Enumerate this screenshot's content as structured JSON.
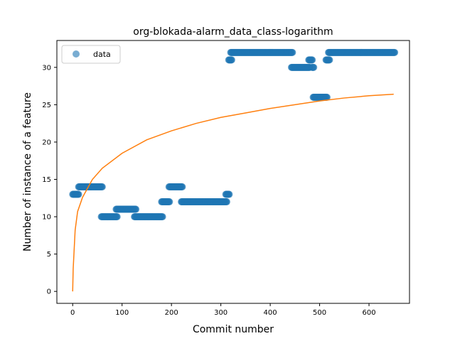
{
  "chart_data": {
    "type": "scatter",
    "title": "org-blokada-alarm_data_class-logarithm",
    "xlabel": "Commit number",
    "ylabel": "Number of instance of a feature",
    "xlim": [
      -32,
      682
    ],
    "ylim": [
      -1.6,
      33.6
    ],
    "xticks": [
      0,
      100,
      200,
      300,
      400,
      500,
      600
    ],
    "yticks": [
      0,
      5,
      10,
      15,
      20,
      25,
      30
    ],
    "grid": false,
    "legend": {
      "position": "top-left",
      "entries": [
        "data"
      ]
    },
    "series": [
      {
        "name": "data",
        "kind": "scatter",
        "color": "#1f77b4",
        "segments": [
          {
            "x_start": 0,
            "x_end": 12,
            "y": 13
          },
          {
            "x_start": 12,
            "x_end": 60,
            "y": 14
          },
          {
            "x_start": 58,
            "x_end": 90,
            "y": 10
          },
          {
            "x_start": 88,
            "x_end": 128,
            "y": 11
          },
          {
            "x_start": 125,
            "x_end": 182,
            "y": 10
          },
          {
            "x_start": 180,
            "x_end": 196,
            "y": 12
          },
          {
            "x_start": 195,
            "x_end": 222,
            "y": 14
          },
          {
            "x_start": 220,
            "x_end": 312,
            "y": 12
          },
          {
            "x_start": 310,
            "x_end": 317,
            "y": 13
          },
          {
            "x_start": 316,
            "x_end": 322,
            "y": 31
          },
          {
            "x_start": 320,
            "x_end": 445,
            "y": 32
          },
          {
            "x_start": 443,
            "x_end": 480,
            "y": 30
          },
          {
            "x_start": 478,
            "x_end": 485,
            "y": 31
          },
          {
            "x_start": 485,
            "x_end": 488,
            "y": 30
          },
          {
            "x_start": 487,
            "x_end": 515,
            "y": 26
          },
          {
            "x_start": 513,
            "x_end": 520,
            "y": 31
          },
          {
            "x_start": 518,
            "x_end": 652,
            "y": 32
          }
        ]
      },
      {
        "name": "",
        "kind": "line",
        "color": "#ff7f0e",
        "model": "logarithmic",
        "points": [
          [
            0,
            0
          ],
          [
            1,
            3.0
          ],
          [
            5,
            8.2
          ],
          [
            10,
            10.7
          ],
          [
            20,
            12.6
          ],
          [
            40,
            15.0
          ],
          [
            60,
            16.5
          ],
          [
            100,
            18.5
          ],
          [
            150,
            20.3
          ],
          [
            200,
            21.5
          ],
          [
            250,
            22.5
          ],
          [
            300,
            23.3
          ],
          [
            350,
            23.9
          ],
          [
            400,
            24.5
          ],
          [
            450,
            25.0
          ],
          [
            500,
            25.5
          ],
          [
            550,
            25.9
          ],
          [
            600,
            26.2
          ],
          [
            650,
            26.4
          ]
        ]
      }
    ]
  }
}
